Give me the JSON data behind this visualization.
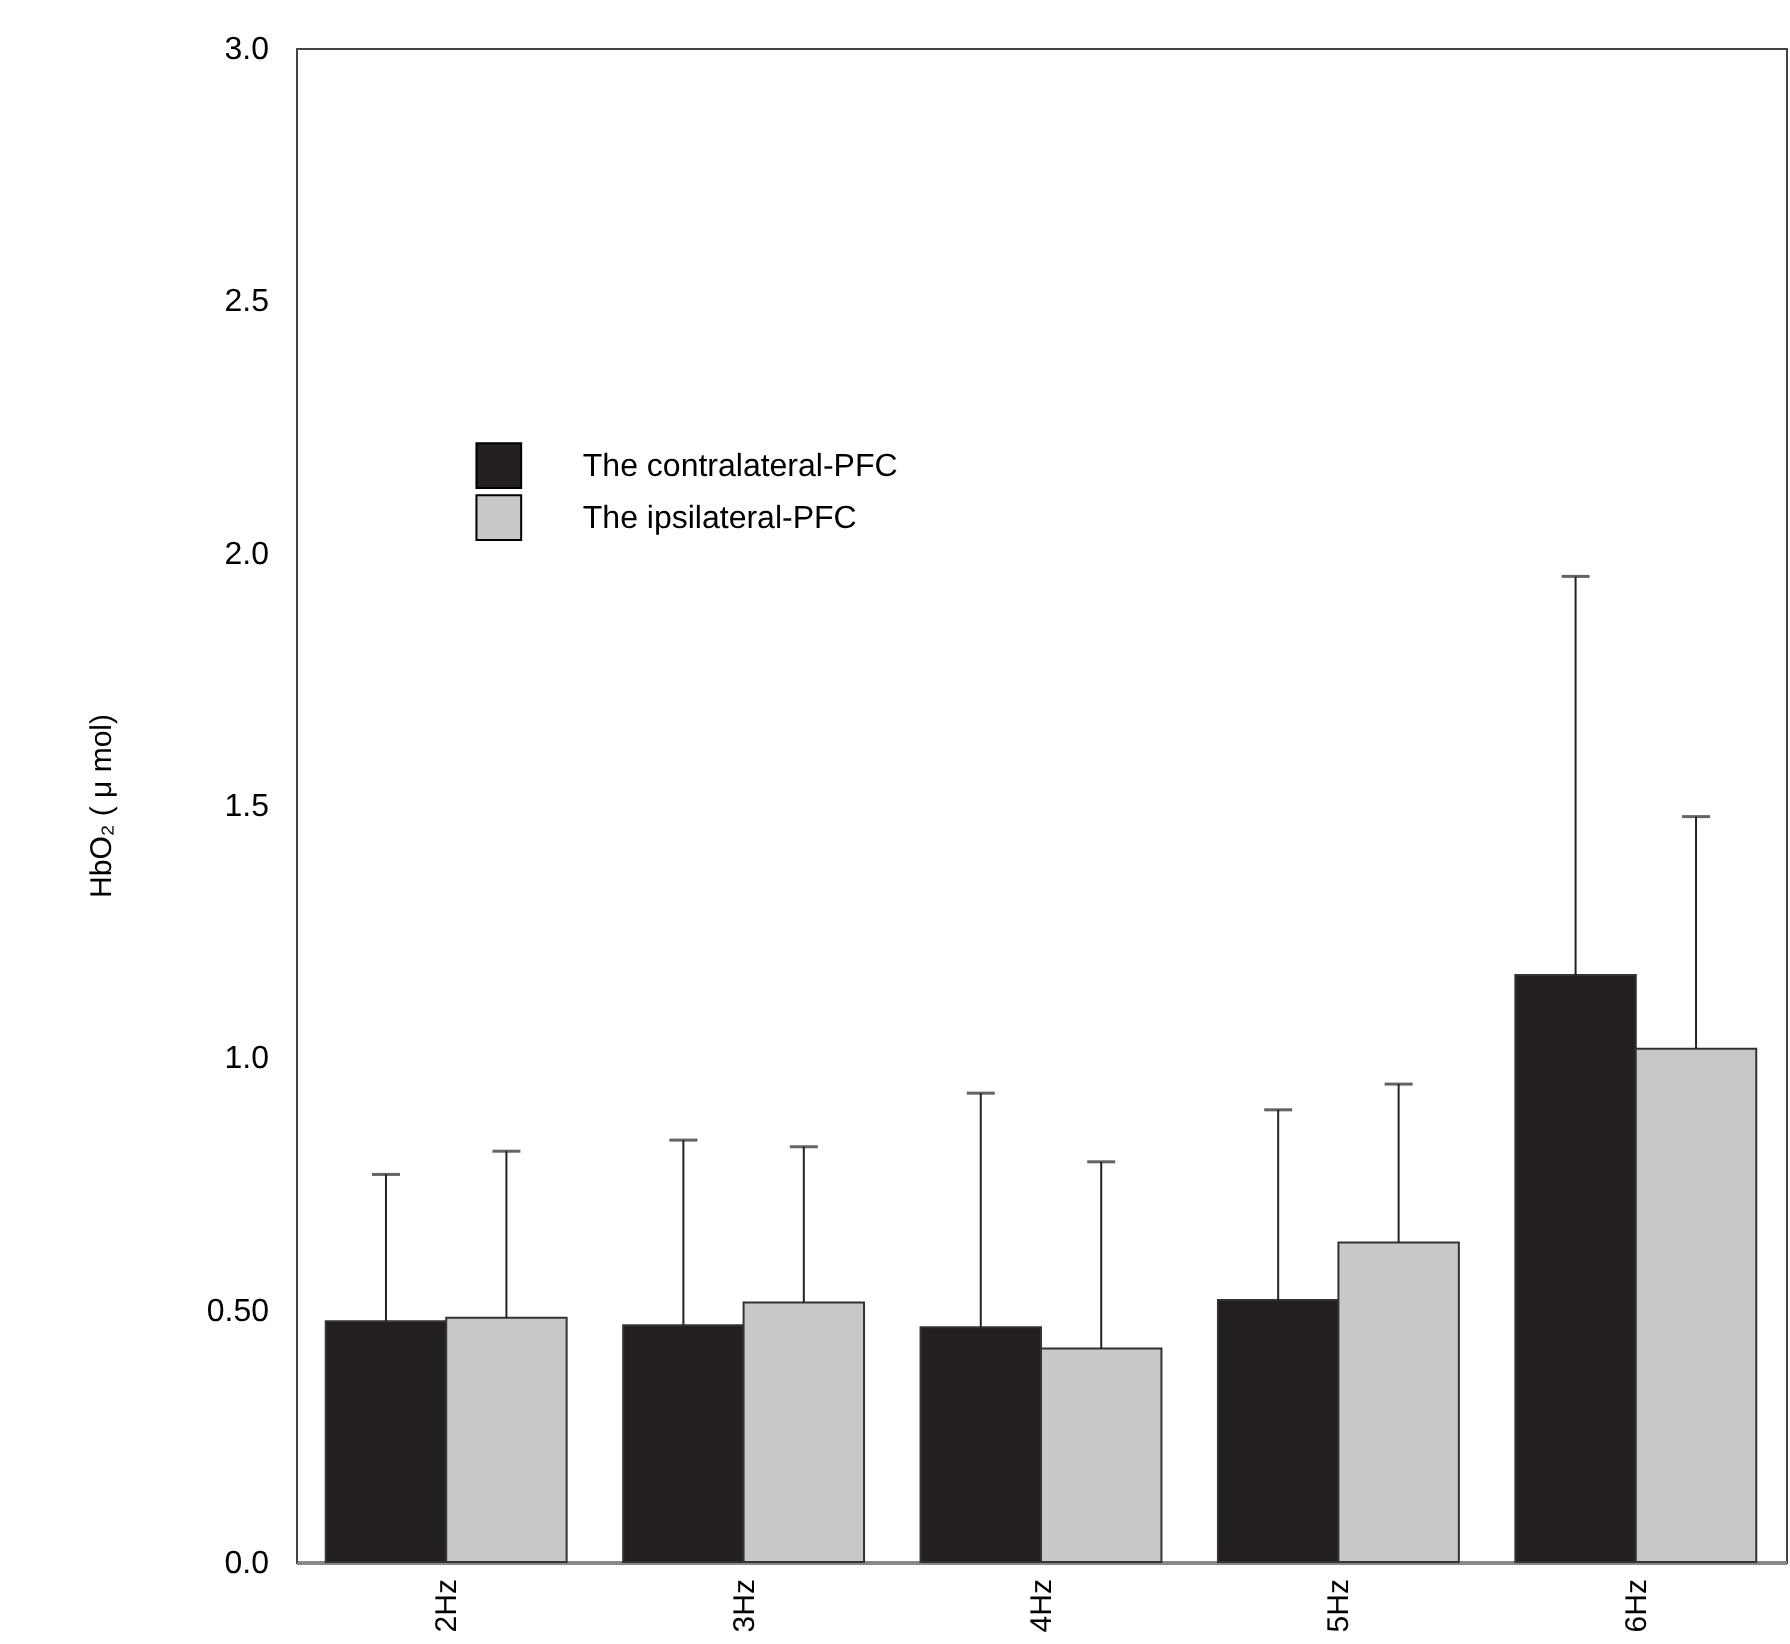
{
  "chart_data": {
    "type": "bar",
    "ylabel": "HbO₂ ( μ mol)",
    "categories": [
      "2Hz",
      "3Hz",
      "4Hz",
      "5Hz",
      "6Hz"
    ],
    "series": [
      {
        "name": "The contralateral-PFC",
        "color": "#231f20",
        "values": [
          0.477,
          0.469,
          0.465,
          0.519,
          1.163
        ],
        "errors": [
          [
            0.477,
            0.768
          ],
          [
            0.469,
            0.836
          ],
          [
            0.465,
            0.929
          ],
          [
            0.519,
            0.896
          ],
          [
            1.163,
            1.953
          ]
        ]
      },
      {
        "name": "The ipsilateral-PFC",
        "color": "#c8c8c8",
        "values": [
          0.484,
          0.514,
          0.423,
          0.633,
          1.017
        ],
        "errors": [
          [
            0.484,
            0.814
          ],
          [
            0.514,
            0.823
          ],
          [
            0.423,
            0.793
          ],
          [
            0.633,
            0.947
          ],
          [
            1.017,
            1.477
          ]
        ]
      }
    ],
    "ylim": [
      0,
      3
    ],
    "yticks": [
      {
        "value": 0,
        "label": "0.0"
      },
      {
        "value": 0.5,
        "label": "0.50"
      },
      {
        "value": 1,
        "label": "1.0"
      },
      {
        "value": 1.5,
        "label": "1.5"
      },
      {
        "value": 2,
        "label": "2.0"
      },
      {
        "value": 2.5,
        "label": "2.5"
      },
      {
        "value": 3,
        "label": "3.0"
      }
    ],
    "legend": "top left",
    "grid": false
  }
}
